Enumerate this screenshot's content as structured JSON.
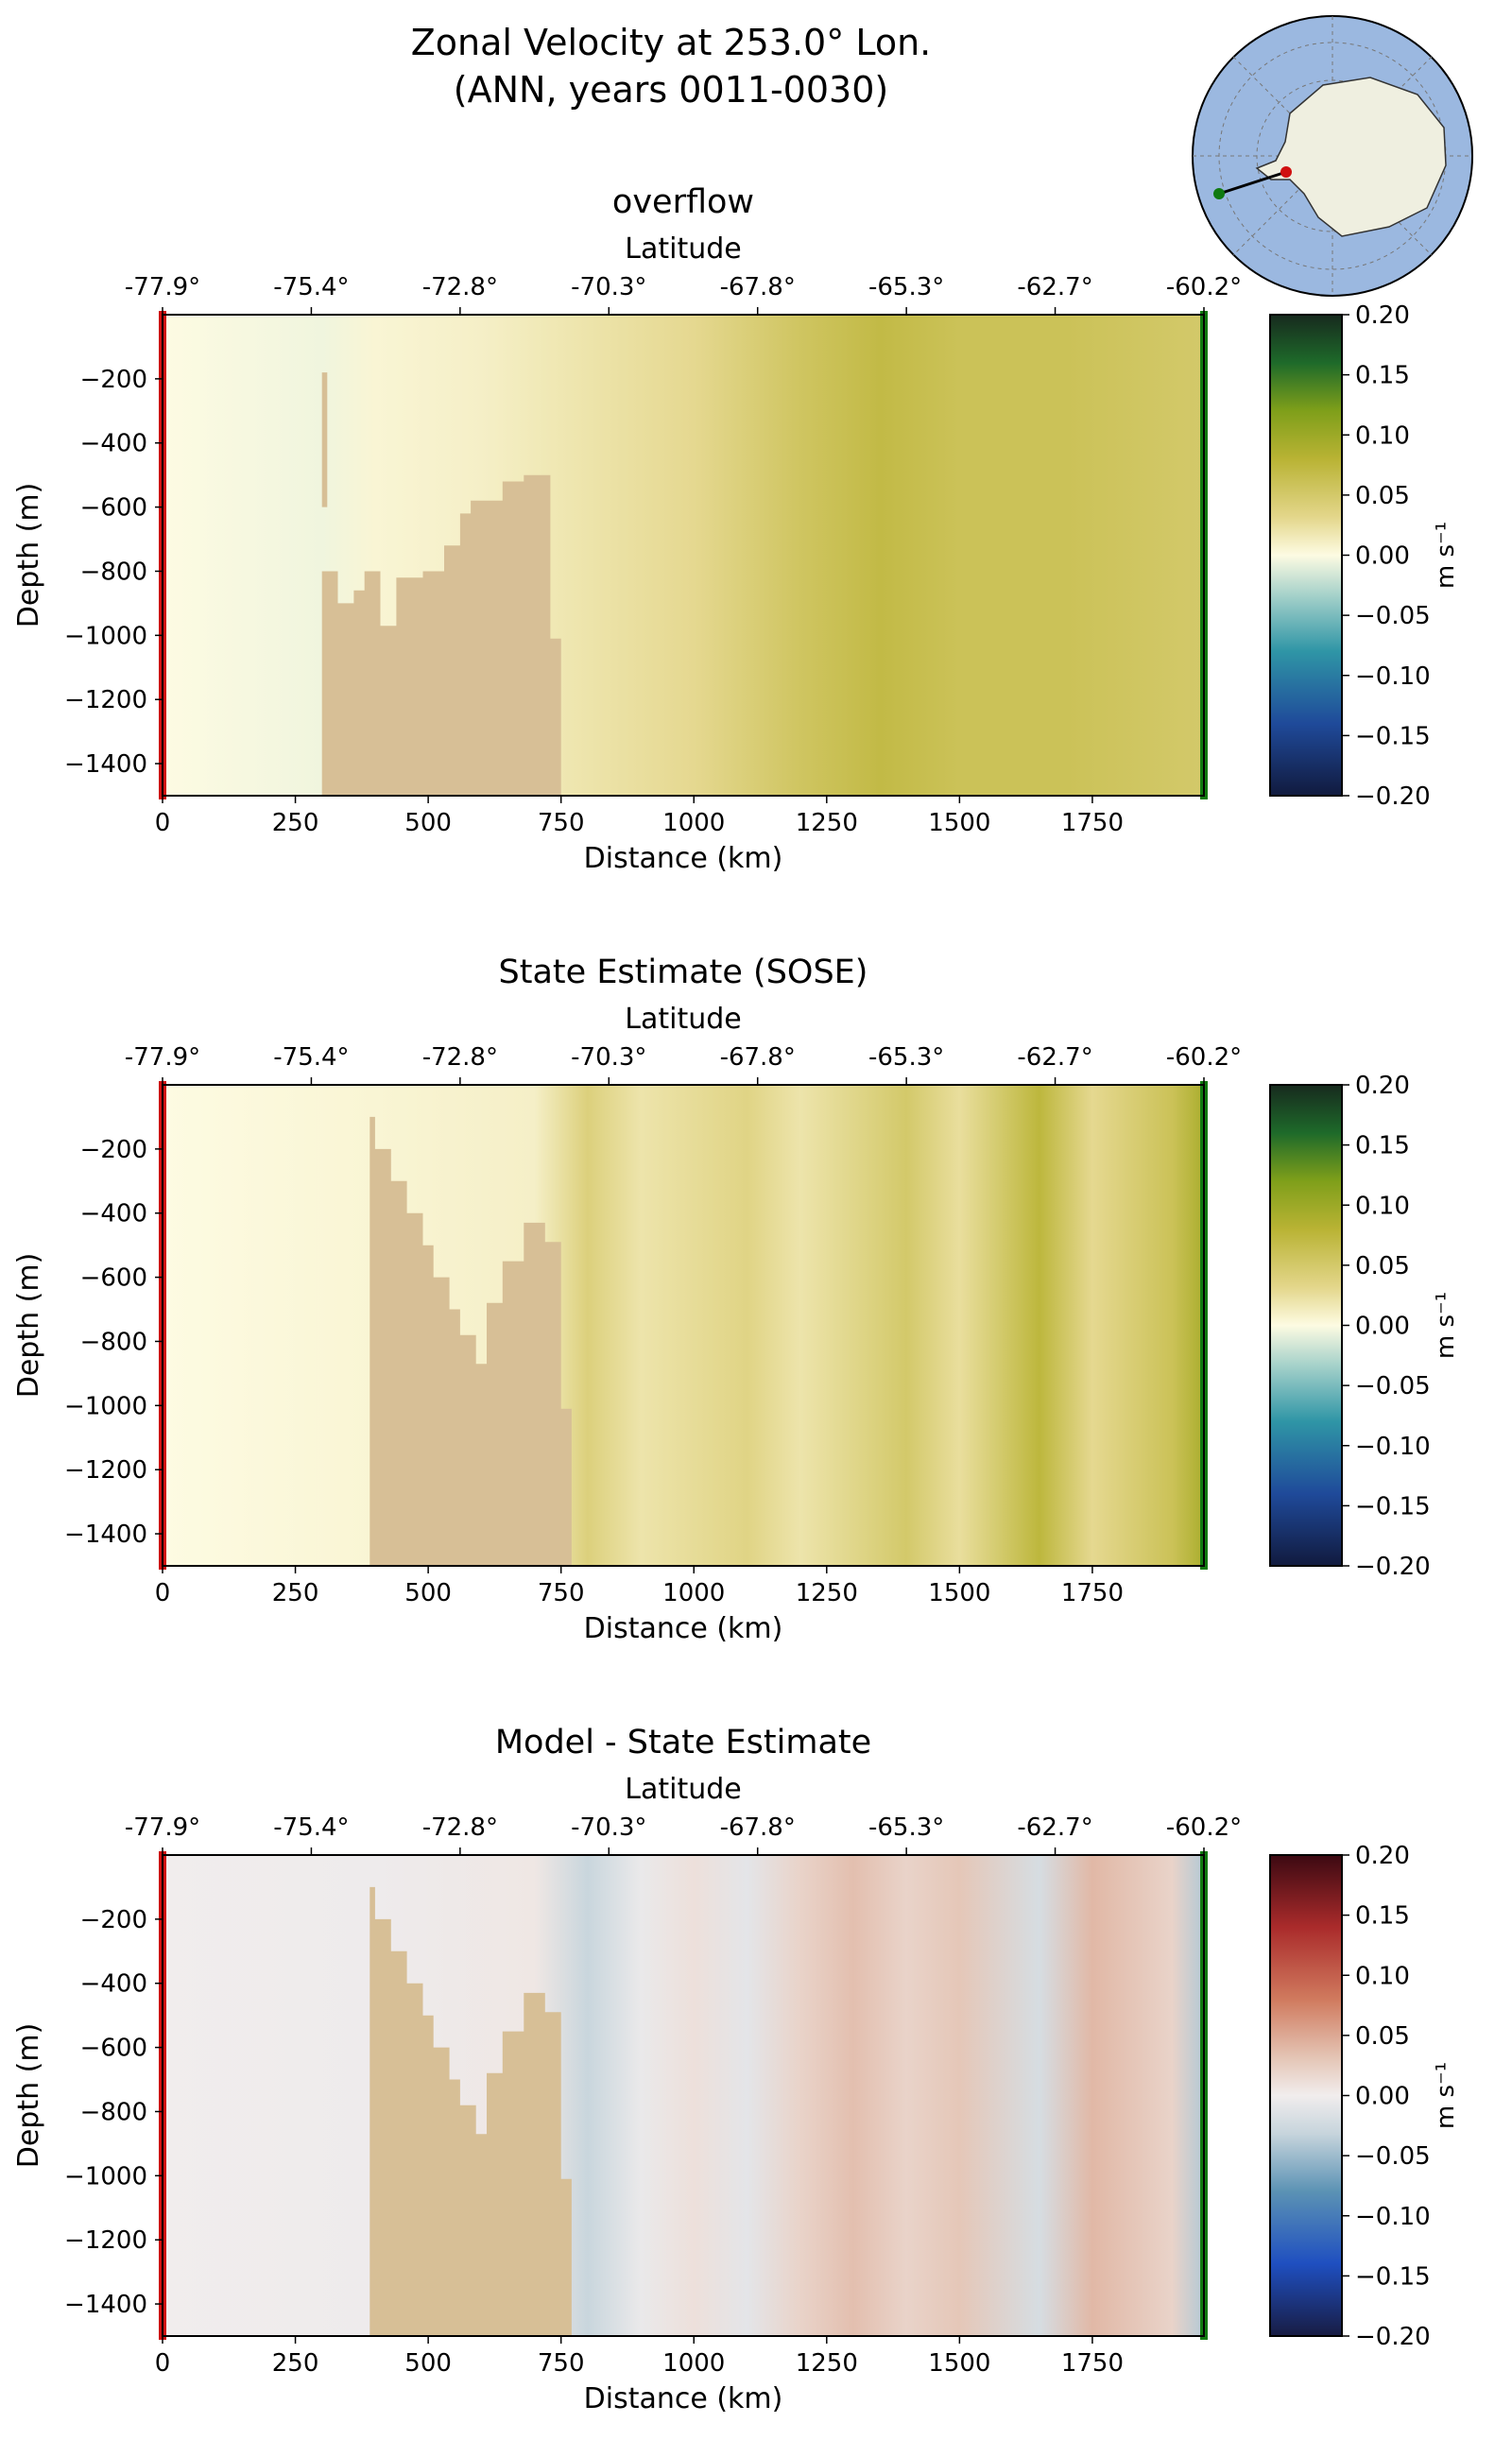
{
  "figure": {
    "title_line1": "Zonal Velocity at 253.0° Lon.",
    "title_line2": "(ANN, years 0011-0030)"
  },
  "colors": {
    "land": "#d7bf96",
    "background": "#ffffff",
    "south_marker": "#d01010",
    "north_marker": "#107a10",
    "map_ocean": "#9bb8e0",
    "map_land": "#efefe0"
  },
  "chart_data": [
    {
      "type": "heatmap",
      "title": "overflow",
      "xlabel": "Distance (km)",
      "ylabel": "Depth (m)",
      "top_xlabel": "Latitude",
      "xlim": [
        0,
        1960
      ],
      "ylim": [
        -1500,
        0
      ],
      "x_ticks": [
        0,
        250,
        500,
        750,
        1000,
        1250,
        1500,
        1750
      ],
      "x_tick_labels": [
        "0",
        "250",
        "500",
        "750",
        "1000",
        "1250",
        "1500",
        "1750"
      ],
      "y_ticks": [
        -200,
        -400,
        -600,
        -800,
        -1000,
        -1200,
        -1400
      ],
      "y_tick_labels": [
        "−200",
        "−400",
        "−600",
        "−800",
        "−1000",
        "−1200",
        "−1400"
      ],
      "top_ticks": [
        0,
        280,
        560,
        840,
        1120,
        1400,
        1680,
        1960
      ],
      "top_tick_labels": [
        "-77.9°",
        "-75.4°",
        "-72.8°",
        "-70.3°",
        "-67.8°",
        "-65.3°",
        "-62.7°",
        "-60.2°"
      ],
      "colormap": "delta",
      "colorbar": {
        "label": "m s⁻¹",
        "range": [
          -0.2,
          0.2
        ],
        "ticks": [
          0.2,
          0.15,
          0.1,
          0.05,
          0.0,
          -0.05,
          -0.1,
          -0.15,
          -0.2
        ],
        "tick_labels": [
          "0.20",
          "0.15",
          "0.10",
          "0.05",
          "0.00",
          "−0.05",
          "−0.10",
          "−0.15",
          "−0.20"
        ]
      },
      "bathymetry": [
        [
          0,
          -1500
        ],
        [
          300,
          -1500
        ],
        [
          300,
          -180
        ],
        [
          310,
          -180
        ],
        [
          310,
          -600
        ],
        [
          300,
          -600
        ],
        [
          300,
          -800
        ],
        [
          330,
          -800
        ],
        [
          330,
          -900
        ],
        [
          360,
          -900
        ],
        [
          360,
          -860
        ],
        [
          380,
          -860
        ],
        [
          380,
          -800
        ],
        [
          410,
          -800
        ],
        [
          410,
          -970
        ],
        [
          440,
          -970
        ],
        [
          440,
          -820
        ],
        [
          490,
          -820
        ],
        [
          490,
          -800
        ],
        [
          530,
          -800
        ],
        [
          530,
          -720
        ],
        [
          560,
          -720
        ],
        [
          560,
          -620
        ],
        [
          580,
          -620
        ],
        [
          580,
          -580
        ],
        [
          640,
          -580
        ],
        [
          640,
          -520
        ],
        [
          680,
          -520
        ],
        [
          680,
          -500
        ],
        [
          730,
          -500
        ],
        [
          730,
          -1010
        ],
        [
          750,
          -1010
        ],
        [
          750,
          -1500
        ]
      ],
      "velocity_bands": [
        [
          0,
          0
        ],
        [
          300,
          -0.005
        ],
        [
          400,
          0.005
        ],
        [
          600,
          0.01
        ],
        [
          700,
          0.015
        ],
        [
          800,
          0.02
        ],
        [
          1000,
          0.03
        ],
        [
          1200,
          0.055
        ],
        [
          1350,
          0.07
        ],
        [
          1500,
          0.06
        ],
        [
          1700,
          0.06
        ],
        [
          1960,
          0.05
        ]
      ]
    },
    {
      "type": "heatmap",
      "title": "State Estimate (SOSE)",
      "xlabel": "Distance (km)",
      "ylabel": "Depth (m)",
      "top_xlabel": "Latitude",
      "xlim": [
        0,
        1960
      ],
      "ylim": [
        -1500,
        0
      ],
      "x_ticks": [
        0,
        250,
        500,
        750,
        1000,
        1250,
        1500,
        1750
      ],
      "x_tick_labels": [
        "0",
        "250",
        "500",
        "750",
        "1000",
        "1250",
        "1500",
        "1750"
      ],
      "y_ticks": [
        -200,
        -400,
        -600,
        -800,
        -1000,
        -1200,
        -1400
      ],
      "y_tick_labels": [
        "−200",
        "−400",
        "−600",
        "−800",
        "−1000",
        "−1200",
        "−1400"
      ],
      "top_ticks": [
        0,
        280,
        560,
        840,
        1120,
        1400,
        1680,
        1960
      ],
      "top_tick_labels": [
        "-77.9°",
        "-75.4°",
        "-72.8°",
        "-70.3°",
        "-67.8°",
        "-65.3°",
        "-62.7°",
        "-60.2°"
      ],
      "colormap": "delta",
      "colorbar": {
        "label": "m s⁻¹",
        "range": [
          -0.2,
          0.2
        ],
        "ticks": [
          0.2,
          0.15,
          0.1,
          0.05,
          0.0,
          -0.05,
          -0.1,
          -0.15,
          -0.2
        ],
        "tick_labels": [
          "0.20",
          "0.15",
          "0.10",
          "0.05",
          "0.00",
          "−0.05",
          "−0.10",
          "−0.15",
          "−0.20"
        ]
      },
      "bathymetry": [
        [
          0,
          -1500
        ],
        [
          390,
          -1500
        ],
        [
          390,
          -100
        ],
        [
          400,
          -100
        ],
        [
          400,
          -200
        ],
        [
          430,
          -200
        ],
        [
          430,
          -300
        ],
        [
          460,
          -300
        ],
        [
          460,
          -400
        ],
        [
          490,
          -400
        ],
        [
          490,
          -500
        ],
        [
          510,
          -500
        ],
        [
          510,
          -600
        ],
        [
          540,
          -600
        ],
        [
          540,
          -700
        ],
        [
          560,
          -700
        ],
        [
          560,
          -780
        ],
        [
          590,
          -780
        ],
        [
          590,
          -870
        ],
        [
          610,
          -870
        ],
        [
          610,
          -680
        ],
        [
          640,
          -680
        ],
        [
          640,
          -550
        ],
        [
          680,
          -550
        ],
        [
          680,
          -430
        ],
        [
          720,
          -430
        ],
        [
          720,
          -490
        ],
        [
          750,
          -490
        ],
        [
          750,
          -1010
        ],
        [
          770,
          -1010
        ],
        [
          770,
          -1500
        ]
      ],
      "velocity_bands": [
        [
          0,
          0
        ],
        [
          400,
          0.005
        ],
        [
          700,
          0.01
        ],
        [
          800,
          0.04
        ],
        [
          900,
          0.02
        ],
        [
          1100,
          0.035
        ],
        [
          1200,
          0.02
        ],
        [
          1400,
          0.05
        ],
        [
          1500,
          0.025
        ],
        [
          1650,
          0.075
        ],
        [
          1750,
          0.03
        ],
        [
          1900,
          0.06
        ],
        [
          1960,
          0.09
        ]
      ]
    },
    {
      "type": "heatmap",
      "title": "Model - State Estimate",
      "xlabel": "Distance (km)",
      "ylabel": "Depth (m)",
      "top_xlabel": "Latitude",
      "xlim": [
        0,
        1960
      ],
      "ylim": [
        -1500,
        0
      ],
      "x_ticks": [
        0,
        250,
        500,
        750,
        1000,
        1250,
        1500,
        1750
      ],
      "x_tick_labels": [
        "0",
        "250",
        "500",
        "750",
        "1000",
        "1250",
        "1500",
        "1750"
      ],
      "y_ticks": [
        -200,
        -400,
        -600,
        -800,
        -1000,
        -1200,
        -1400
      ],
      "y_tick_labels": [
        "−200",
        "−400",
        "−600",
        "−800",
        "−1000",
        "−1200",
        "−1400"
      ],
      "top_ticks": [
        0,
        280,
        560,
        840,
        1120,
        1400,
        1680,
        1960
      ],
      "top_tick_labels": [
        "-77.9°",
        "-75.4°",
        "-72.8°",
        "-70.3°",
        "-67.8°",
        "-65.3°",
        "-62.7°",
        "-60.2°"
      ],
      "colormap": "balance",
      "colorbar": {
        "label": "m s⁻¹",
        "range": [
          -0.2,
          0.2
        ],
        "ticks": [
          0.2,
          0.15,
          0.1,
          0.05,
          0.0,
          -0.05,
          -0.1,
          -0.15,
          -0.2
        ],
        "tick_labels": [
          "0.20",
          "0.15",
          "0.10",
          "0.05",
          "0.00",
          "−0.05",
          "−0.10",
          "−0.15",
          "−0.20"
        ]
      },
      "bathymetry": [
        [
          0,
          -1500
        ],
        [
          390,
          -1500
        ],
        [
          390,
          -100
        ],
        [
          400,
          -100
        ],
        [
          400,
          -200
        ],
        [
          430,
          -200
        ],
        [
          430,
          -300
        ],
        [
          460,
          -300
        ],
        [
          460,
          -400
        ],
        [
          490,
          -400
        ],
        [
          490,
          -500
        ],
        [
          510,
          -500
        ],
        [
          510,
          -600
        ],
        [
          540,
          -600
        ],
        [
          540,
          -700
        ],
        [
          560,
          -700
        ],
        [
          560,
          -780
        ],
        [
          590,
          -780
        ],
        [
          590,
          -870
        ],
        [
          610,
          -870
        ],
        [
          610,
          -680
        ],
        [
          640,
          -680
        ],
        [
          640,
          -550
        ],
        [
          680,
          -550
        ],
        [
          680,
          -430
        ],
        [
          720,
          -430
        ],
        [
          720,
          -490
        ],
        [
          750,
          -490
        ],
        [
          750,
          -1010
        ],
        [
          770,
          -1010
        ],
        [
          770,
          -1500
        ]
      ],
      "velocity_bands": [
        [
          0,
          0
        ],
        [
          400,
          -0.002
        ],
        [
          700,
          0.005
        ],
        [
          800,
          -0.03
        ],
        [
          900,
          -0.005
        ],
        [
          1000,
          0.01
        ],
        [
          1100,
          -0.01
        ],
        [
          1200,
          0.02
        ],
        [
          1300,
          0.035
        ],
        [
          1400,
          0.02
        ],
        [
          1500,
          0.03
        ],
        [
          1650,
          -0.02
        ],
        [
          1750,
          0.04
        ],
        [
          1900,
          0.02
        ],
        [
          1960,
          -0.04
        ]
      ]
    }
  ]
}
